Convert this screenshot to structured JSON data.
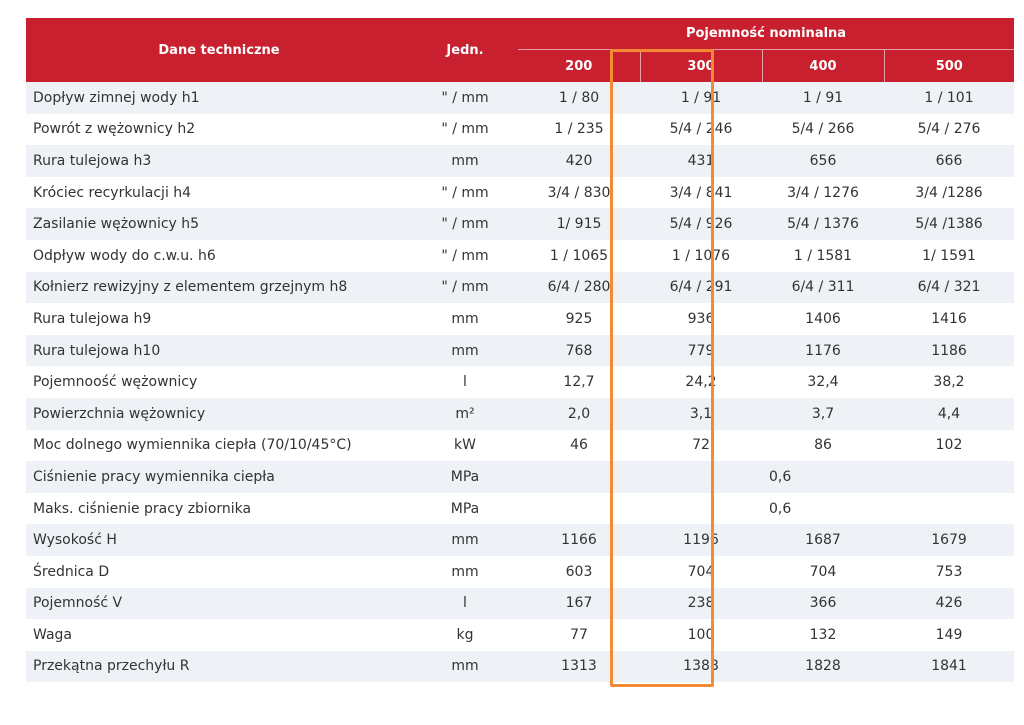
{
  "header": {
    "name": "Dane techniczne",
    "unit": "Jedn.",
    "group": "Pojemność nominalna",
    "capacities": [
      "200",
      "300",
      "400",
      "500"
    ]
  },
  "rows": [
    {
      "name": "Dopływ zimnej wody h1",
      "unit": "\" / mm",
      "values": [
        "1 / 80",
        "1 / 91",
        "1 / 91",
        "1 / 101"
      ]
    },
    {
      "name": "Powrót z wężownicy h2",
      "unit": "\" / mm",
      "values": [
        "1 / 235",
        "5/4 / 246",
        "5/4 / 266",
        "5/4 / 276"
      ]
    },
    {
      "name": "Rura tulejowa h3",
      "unit": "mm",
      "values": [
        "420",
        "431",
        "656",
        "666"
      ]
    },
    {
      "name": "Króciec recyrkulacji h4",
      "unit": "\" / mm",
      "values": [
        "3/4 / 830",
        "3/4 / 841",
        "3/4 / 1276",
        "3/4 /1286"
      ]
    },
    {
      "name": "Zasilanie wężownicy h5",
      "unit": "\" / mm",
      "values": [
        "1/ 915",
        "5/4 / 926",
        "5/4 / 1376",
        "5/4 /1386"
      ]
    },
    {
      "name": "Odpływ wody do c.w.u. h6",
      "unit": "\" / mm",
      "values": [
        "1 / 1065",
        "1 / 1076",
        "1 / 1581",
        "1/ 1591"
      ]
    },
    {
      "name": "Kołnierz rewizyjny z elementem grzejnym h8",
      "unit": "\" / mm",
      "values": [
        "6/4 / 280",
        "6/4 / 291",
        "6/4 / 311",
        "6/4 / 321"
      ]
    },
    {
      "name": "Rura tulejowa h9",
      "unit": "mm",
      "values": [
        "925",
        "936",
        "1406",
        "1416"
      ]
    },
    {
      "name": "Rura tulejowa h10",
      "unit": "mm",
      "values": [
        "768",
        "779",
        "1176",
        "1186"
      ]
    },
    {
      "name": "Pojemnoość wężownicy",
      "unit": "l",
      "values": [
        "12,7",
        "24,2",
        "32,4",
        "38,2"
      ]
    },
    {
      "name": "Powierzchnia wężownicy",
      "unit": "m²",
      "values": [
        "2,0",
        "3,1",
        "3,7",
        "4,4"
      ]
    },
    {
      "name": "Moc dolnego wymiennika ciepła (70/10/45°C)",
      "unit": "kW",
      "values": [
        "46",
        "72",
        "86",
        "102"
      ]
    },
    {
      "name": "Ciśnienie pracy wymiennika ciepła",
      "unit": "MPa",
      "shared": "0,6"
    },
    {
      "name": "Maks. ciśnienie pracy zbiornika",
      "unit": "MPa",
      "shared": "0,6"
    },
    {
      "name": "Wysokość H",
      "unit": "mm",
      "values": [
        "1166",
        "1196",
        "1687",
        "1679"
      ]
    },
    {
      "name": "Średnica D",
      "unit": "mm",
      "values": [
        "603",
        "704",
        "704",
        "753"
      ]
    },
    {
      "name": "Pojemność V",
      "unit": "l",
      "values": [
        "167",
        "238",
        "366",
        "426"
      ]
    },
    {
      "name": "Waga",
      "unit": "kg",
      "values": [
        "77",
        "100",
        "132",
        "149"
      ]
    },
    {
      "name": "Przekątna przechyłu R",
      "unit": "mm",
      "values": [
        "1313",
        "1388",
        "1828",
        "1841"
      ]
    }
  ],
  "highlight": {
    "column": "300",
    "color": "#f38b35"
  },
  "colors": {
    "header_bg": "#c8202f",
    "stripe_bg": "#eef1f5"
  }
}
